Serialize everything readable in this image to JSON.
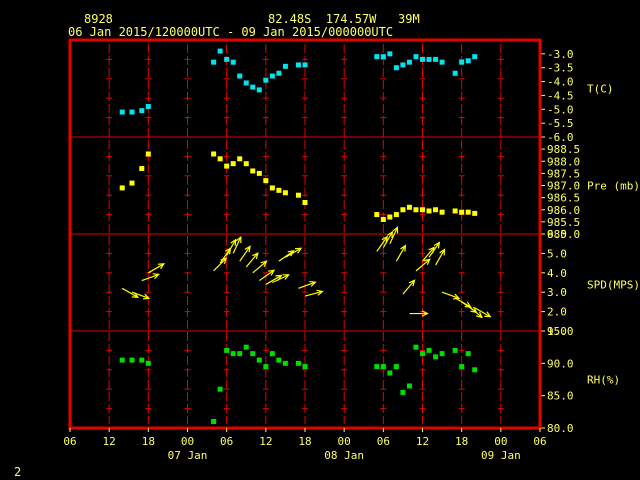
{
  "header": {
    "station_id": "8928",
    "location": "82.48S  174.57W   39M",
    "period": "06 Jan 2015/120000UTC - 09 Jan 2015/000000UTC"
  },
  "page_number": "2",
  "colors": {
    "frame": "#e60000",
    "grid": "#e60000",
    "text": "#ffff66",
    "temperature": "#00e5ee",
    "pressure": "#ffff00",
    "wind": "#ffff00",
    "humidity": "#00dd00",
    "background": "#000000"
  },
  "chart_data": [
    {
      "type": "scatter",
      "ylabel": "T(C)",
      "ylim": [
        -6.0,
        -2.5
      ],
      "ticks": [
        "-3.0",
        "-3.5",
        "-4.0",
        "-4.5",
        "-5.0",
        "-5.5",
        "-6.0"
      ],
      "tick_values": [
        -3.0,
        -3.5,
        -4.0,
        -4.5,
        -5.0,
        -5.5,
        -6.0
      ],
      "x": [
        14,
        15.5,
        17,
        18,
        28,
        29,
        30,
        31,
        32,
        33,
        34,
        35,
        36,
        37,
        38,
        39,
        41,
        42,
        53,
        54,
        55,
        56,
        57,
        58,
        59,
        60,
        61,
        62,
        63,
        65,
        66,
        67,
        68
      ],
      "values": [
        -5.1,
        -5.1,
        -5.05,
        -4.9,
        -3.3,
        -2.9,
        -3.2,
        -3.3,
        -3.8,
        -4.05,
        -4.2,
        -4.3,
        -3.95,
        -3.8,
        -3.7,
        -3.45,
        -3.4,
        -3.4,
        -3.1,
        -3.1,
        -3.0,
        -3.5,
        -3.4,
        -3.3,
        -3.1,
        -3.2,
        -3.2,
        -3.2,
        -3.3,
        -3.7,
        -3.3,
        -3.25,
        -3.1
      ]
    },
    {
      "type": "scatter",
      "ylabel": "Pre (mb)",
      "ylim": [
        985.0,
        989.0
      ],
      "ticks": [
        "988.5",
        "988.0",
        "987.5",
        "987.0",
        "986.5",
        "986.0",
        "985.5",
        "985.0"
      ],
      "tick_values": [
        988.5,
        988.0,
        987.5,
        987.0,
        986.5,
        986.0,
        985.5,
        985.0
      ],
      "x": [
        14,
        15.5,
        17,
        18,
        28,
        29,
        30,
        31,
        32,
        33,
        34,
        35,
        36,
        37,
        38,
        39,
        41,
        42,
        53,
        54,
        55,
        56,
        57,
        58,
        59,
        60,
        61,
        62,
        63,
        65,
        66,
        67,
        68
      ],
      "values": [
        986.9,
        987.1,
        987.7,
        988.3,
        988.3,
        988.1,
        987.8,
        987.9,
        988.1,
        987.9,
        987.6,
        987.5,
        987.2,
        986.9,
        986.8,
        986.7,
        986.6,
        986.3,
        985.8,
        985.6,
        985.7,
        985.8,
        986.0,
        986.1,
        986.0,
        986.0,
        985.95,
        986.0,
        985.9,
        985.95,
        985.9,
        985.9,
        985.85
      ]
    },
    {
      "type": "scatter",
      "ylabel": "SPD(MPS)",
      "ylim": [
        1.0,
        6.0
      ],
      "ticks": [
        "6.0",
        "5.0",
        "4.0",
        "3.0",
        "2.0",
        "1.0"
      ],
      "tick_values": [
        6.0,
        5.0,
        4.0,
        3.0,
        2.0,
        1.0
      ],
      "x": [
        14,
        15.5,
        17,
        18,
        28,
        29,
        30,
        31,
        32,
        33,
        34,
        35,
        36,
        37,
        38,
        39,
        41,
        42,
        53,
        54,
        55,
        56,
        57,
        58,
        59,
        60,
        61,
        62,
        63,
        65,
        66,
        67,
        68
      ],
      "values": [
        3.2,
        3.0,
        3.6,
        4.0,
        4.1,
        4.5,
        4.9,
        5.0,
        4.6,
        4.3,
        4.0,
        3.6,
        3.4,
        3.5,
        4.6,
        4.8,
        3.2,
        2.8,
        5.1,
        5.3,
        5.5,
        4.6,
        2.9,
        1.9,
        4.1,
        4.6,
        4.8,
        4.4,
        3.0,
        2.7,
        2.5,
        2.3,
        2.2
      ],
      "direction_deg": [
        300,
        290,
        250,
        240,
        225,
        215,
        210,
        205,
        215,
        220,
        230,
        235,
        240,
        245,
        235,
        240,
        250,
        255,
        215,
        210,
        205,
        210,
        220,
        270,
        230,
        220,
        215,
        210,
        290,
        300,
        305,
        310,
        300
      ]
    },
    {
      "type": "scatter",
      "ylabel": "RH(%)",
      "ylim": [
        80.0,
        95.0
      ],
      "ticks": [
        "95.0",
        "90.0",
        "85.0",
        "80.0"
      ],
      "tick_values": [
        95.0,
        90.0,
        85.0,
        80.0
      ],
      "x": [
        14,
        15.5,
        17,
        18,
        28,
        29,
        30,
        31,
        32,
        33,
        34,
        35,
        36,
        37,
        38,
        39,
        41,
        42,
        53,
        54,
        55,
        56,
        57,
        58,
        59,
        60,
        61,
        62,
        63,
        65,
        66,
        67,
        68
      ],
      "values": [
        90.5,
        90.5,
        90.5,
        90.0,
        81.0,
        86.0,
        92.0,
        91.5,
        91.5,
        92.5,
        91.5,
        90.5,
        89.5,
        91.5,
        90.5,
        90.0,
        90.0,
        89.5,
        89.5,
        89.5,
        88.5,
        89.5,
        85.5,
        86.5,
        92.5,
        91.5,
        92.0,
        91.0,
        91.5,
        92.0,
        89.5,
        91.5,
        89.0
      ]
    }
  ],
  "x_axis": {
    "hour_labels": [
      "06",
      "12",
      "18",
      "00",
      "06",
      "12",
      "18",
      "00",
      "06",
      "12",
      "18",
      "00",
      "06"
    ],
    "date_labels": [
      "07 Jan",
      "08 Jan",
      "09 Jan"
    ],
    "range_hours": [
      6,
      78
    ]
  }
}
